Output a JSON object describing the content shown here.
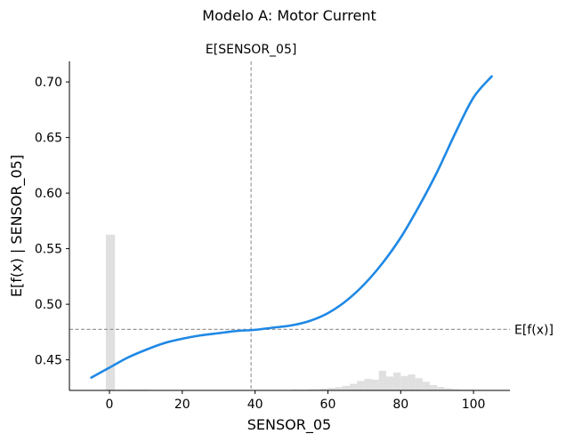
{
  "chart_data": {
    "type": "line",
    "title": "Modelo A: Motor Current",
    "xlabel": "SENSOR_05",
    "ylabel": "E[f(x) | SENSOR_05]",
    "xlim": [
      -11,
      110
    ],
    "ylim": [
      0.4225,
      0.7185
    ],
    "x_ticks": [
      0,
      20,
      40,
      60,
      80,
      100
    ],
    "y_ticks": [
      0.45,
      0.5,
      0.55,
      0.6,
      0.65,
      0.7
    ],
    "grid": false,
    "series": [
      {
        "color": "#1e88e5",
        "x": [
          -5,
          0,
          5,
          10,
          15,
          20,
          25,
          30,
          35,
          40,
          45,
          50,
          55,
          60,
          65,
          70,
          75,
          80,
          85,
          90,
          95,
          100,
          105
        ],
        "y": [
          0.434,
          0.443,
          0.452,
          0.459,
          0.465,
          0.469,
          0.472,
          0.474,
          0.476,
          0.477,
          0.479,
          0.481,
          0.485,
          0.492,
          0.503,
          0.518,
          0.537,
          0.56,
          0.588,
          0.619,
          0.654,
          0.686,
          0.705
        ]
      }
    ],
    "reference_lines": {
      "expected_x": {
        "value": 38.9,
        "label": "E[SENSOR_05]"
      },
      "expected_fx": {
        "value": 0.4774,
        "label": "E[f(x)]"
      }
    },
    "histogram": {
      "color": "#e0e0e0",
      "bins": [
        [
          -1,
          1.5,
          0.5626
        ],
        [
          1.5,
          6,
          0.4231
        ],
        [
          6,
          11,
          0.4232
        ],
        [
          11,
          25,
          0.4228
        ],
        [
          50,
          55,
          0.4232
        ],
        [
          55,
          58,
          0.4236
        ],
        [
          58,
          60,
          0.4241
        ],
        [
          60,
          62,
          0.4247
        ],
        [
          62,
          64,
          0.4255
        ],
        [
          64,
          66,
          0.4266
        ],
        [
          66,
          68,
          0.4284
        ],
        [
          68,
          70,
          0.4311
        ],
        [
          70,
          72,
          0.4329
        ],
        [
          72,
          74,
          0.4322
        ],
        [
          74,
          76,
          0.4402
        ],
        [
          76,
          78,
          0.435
        ],
        [
          78,
          80,
          0.4385
        ],
        [
          80,
          82,
          0.4355
        ],
        [
          82,
          84,
          0.4369
        ],
        [
          84,
          86,
          0.4335
        ],
        [
          86,
          88,
          0.4303
        ],
        [
          88,
          90,
          0.4273
        ],
        [
          90,
          92,
          0.4256
        ],
        [
          92,
          94,
          0.4244
        ],
        [
          94,
          96,
          0.4236
        ],
        [
          96,
          100,
          0.4232
        ],
        [
          100,
          105,
          0.4228
        ]
      ]
    }
  }
}
